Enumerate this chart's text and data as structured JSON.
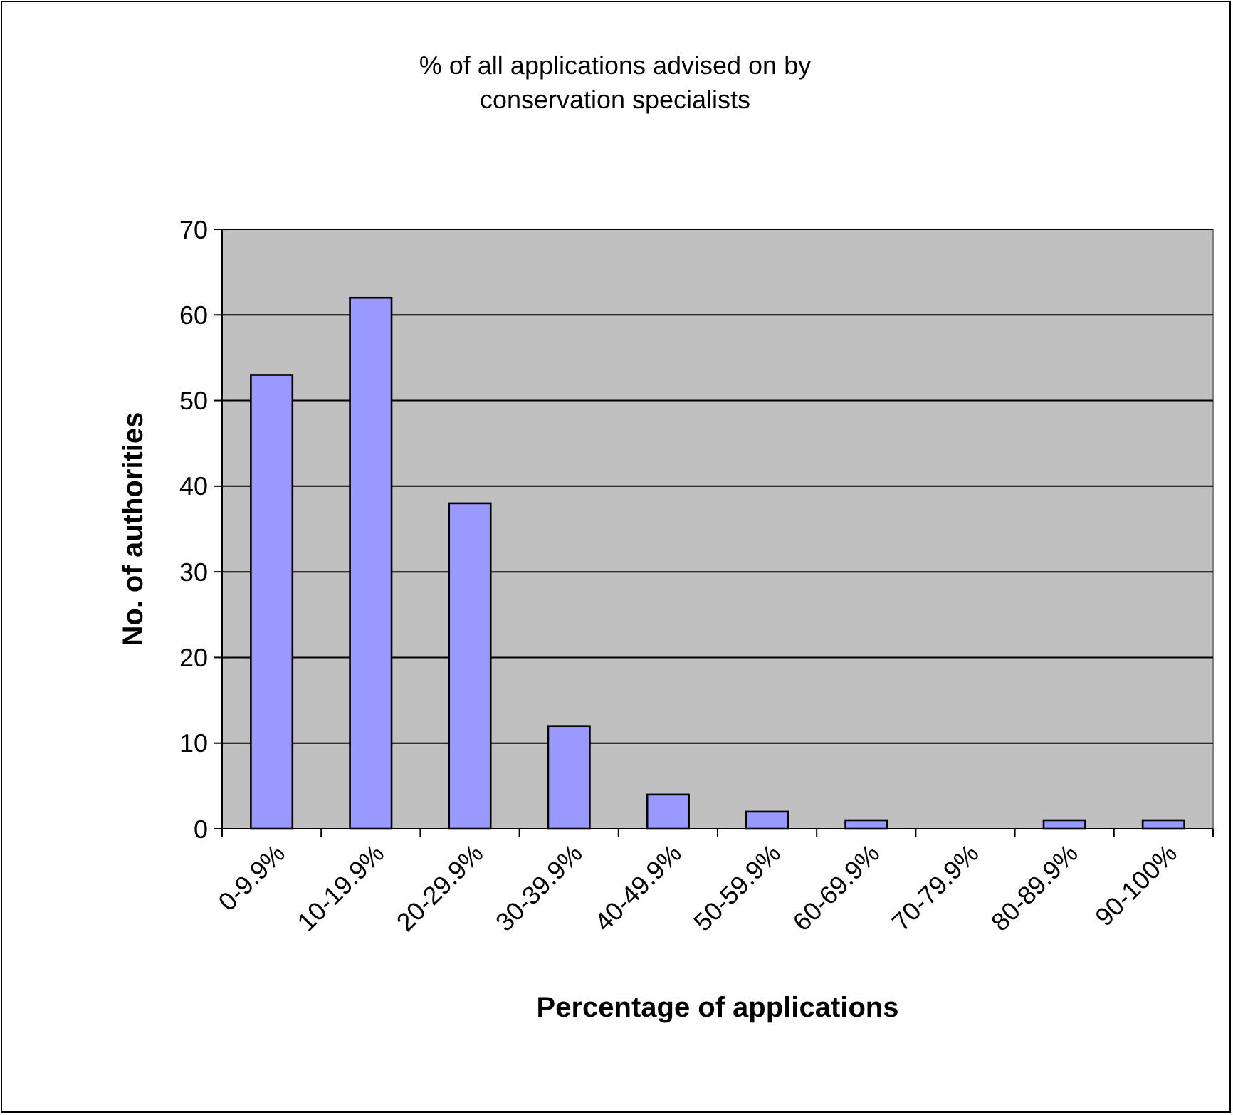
{
  "chart_data": {
    "type": "bar",
    "title": "% of all applications advised on by conservation specialists",
    "xlabel": "Percentage of applications",
    "ylabel": "No. of authorities",
    "categories": [
      "0-9.9%",
      "10-19.9%",
      "20-29.9%",
      "30-39.9%",
      "40-49.9%",
      "50-59.9%",
      "60-69.9%",
      "70-79.9%",
      "80-89.9%",
      "90-100%"
    ],
    "values": [
      53,
      62,
      38,
      12,
      4,
      2,
      1,
      0,
      1,
      1
    ],
    "color": "#9999ff",
    "ylim": [
      0,
      70
    ],
    "yticks": [
      0,
      10,
      20,
      30,
      40,
      50,
      60,
      70
    ],
    "grid": "y"
  }
}
